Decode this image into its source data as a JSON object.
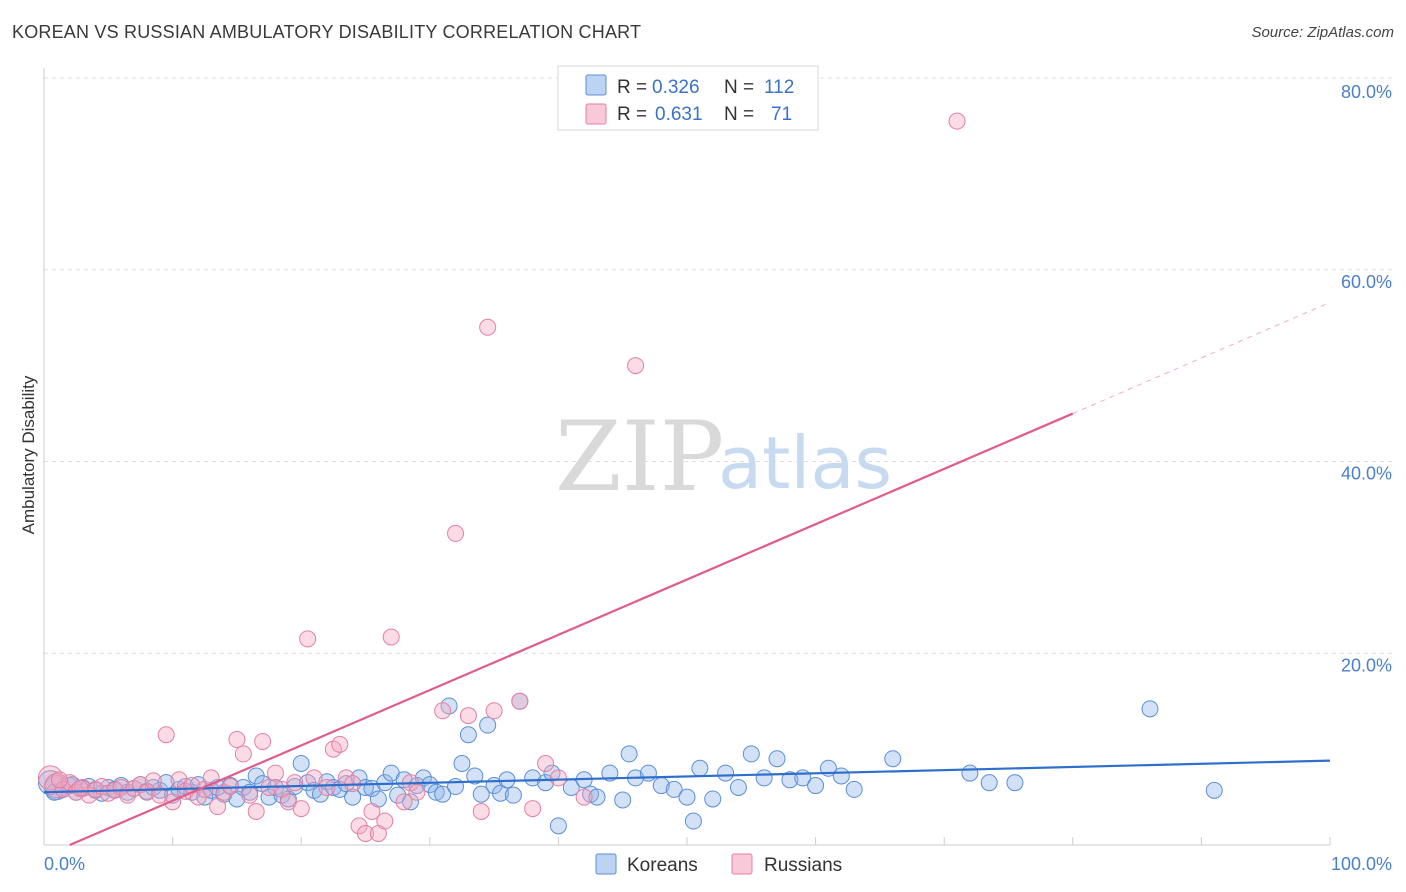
{
  "title": "KOREAN VS RUSSIAN AMBULATORY DISABILITY CORRELATION CHART",
  "source": "Source: ZipAtlas.com",
  "watermark": {
    "zip": "ZIP",
    "atlas": "atlas"
  },
  "chart_data": {
    "type": "scatter",
    "ylabel": "Ambulatory Disability",
    "xlim": [
      0,
      100
    ],
    "ylim": [
      0,
      80
    ],
    "y_ticks": [
      {
        "v": 20,
        "label": "20.0%"
      },
      {
        "v": 40,
        "label": "40.0%"
      },
      {
        "v": 60,
        "label": "60.0%"
      },
      {
        "v": 80,
        "label": "80.0%"
      }
    ],
    "x_ticks": [
      {
        "v": 0,
        "label": "0.0%"
      },
      {
        "v": 100,
        "label": "100.0%"
      }
    ],
    "legend_stats": [
      {
        "r_label": "R =",
        "r": "0.326",
        "n_label": "N =",
        "n": "112",
        "color": "#8fb5e8"
      },
      {
        "r_label": "R =",
        "r": "0.631",
        "n_label": "N =",
        "n": "71",
        "color": "#f4a7c0"
      }
    ],
    "series": [
      {
        "name": "Koreans",
        "color": "#8fb5e8",
        "stroke": "#5b8fd6",
        "trend": {
          "x0": 0,
          "y0": 5.5,
          "x1": 100,
          "y1": 8.8,
          "color": "#2f6fcc"
        },
        "points": [
          [
            0.5,
            6.5
          ],
          [
            1,
            6
          ],
          [
            1.5,
            5.8
          ],
          [
            2,
            6.2
          ],
          [
            2.5,
            5.5
          ],
          [
            3,
            5.9
          ],
          [
            3.5,
            6.1
          ],
          [
            4,
            5.7
          ],
          [
            4.5,
            5.4
          ],
          [
            5,
            6
          ],
          [
            5.5,
            5.8
          ],
          [
            6,
            6.2
          ],
          [
            6.5,
            5.5
          ],
          [
            7,
            5.9
          ],
          [
            7.5,
            6.3
          ],
          [
            8,
            5.6
          ],
          [
            8.5,
            6
          ],
          [
            9,
            5.7
          ],
          [
            9.5,
            6.5
          ],
          [
            10,
            5.2
          ],
          [
            10.5,
            5.8
          ],
          [
            11,
            6.1
          ],
          [
            11.5,
            5.5
          ],
          [
            12,
            6.3
          ],
          [
            12.5,
            5
          ],
          [
            13,
            5.7
          ],
          [
            13.5,
            6
          ],
          [
            14,
            5.3
          ],
          [
            14.5,
            6.2
          ],
          [
            15,
            4.8
          ],
          [
            15.5,
            6
          ],
          [
            16,
            5.5
          ],
          [
            16.5,
            7.2
          ],
          [
            17,
            6.4
          ],
          [
            17.5,
            5
          ],
          [
            18,
            6
          ],
          [
            18.5,
            5.2
          ],
          [
            19,
            4.8
          ],
          [
            19.5,
            6.1
          ],
          [
            20,
            8.5
          ],
          [
            20.5,
            6.5
          ],
          [
            21,
            5.7
          ],
          [
            21.5,
            5.3
          ],
          [
            22,
            6.6
          ],
          [
            22.5,
            6
          ],
          [
            23,
            5.8
          ],
          [
            23.5,
            6.4
          ],
          [
            24,
            5
          ],
          [
            24.5,
            7
          ],
          [
            25,
            6
          ],
          [
            25.5,
            5.9
          ],
          [
            26,
            4.8
          ],
          [
            26.5,
            6.5
          ],
          [
            27,
            7.5
          ],
          [
            27.5,
            5.2
          ],
          [
            28,
            6.8
          ],
          [
            28.5,
            4.5
          ],
          [
            29,
            6.2
          ],
          [
            29.5,
            7
          ],
          [
            30,
            6.3
          ],
          [
            30.5,
            5.5
          ],
          [
            31,
            5.3
          ],
          [
            31.5,
            14.5
          ],
          [
            32,
            6.1
          ],
          [
            32.5,
            8.5
          ],
          [
            33,
            11.5
          ],
          [
            33.5,
            7.2
          ],
          [
            34,
            5.3
          ],
          [
            34.5,
            12.5
          ],
          [
            35,
            6.2
          ],
          [
            35.5,
            5.4
          ],
          [
            36,
            6.8
          ],
          [
            36.5,
            5.2
          ],
          [
            37,
            15
          ],
          [
            38,
            7
          ],
          [
            39,
            6.5
          ],
          [
            39.5,
            7.5
          ],
          [
            40,
            2
          ],
          [
            41,
            6
          ],
          [
            42,
            6.8
          ],
          [
            42.5,
            5.3
          ],
          [
            43,
            5
          ],
          [
            44,
            7.5
          ],
          [
            45,
            4.7
          ],
          [
            45.5,
            9.5
          ],
          [
            46,
            7
          ],
          [
            47,
            7.5
          ],
          [
            48,
            6.2
          ],
          [
            49,
            5.8
          ],
          [
            50,
            5
          ],
          [
            50.5,
            2.5
          ],
          [
            51,
            8
          ],
          [
            52,
            4.8
          ],
          [
            53,
            7.5
          ],
          [
            54,
            6
          ],
          [
            55,
            9.5
          ],
          [
            56,
            7
          ],
          [
            57,
            9
          ],
          [
            58,
            6.8
          ],
          [
            59,
            7
          ],
          [
            60,
            6.2
          ],
          [
            61,
            8
          ],
          [
            62,
            7.2
          ],
          [
            63,
            5.8
          ],
          [
            66,
            9
          ],
          [
            72,
            7.5
          ],
          [
            73.5,
            6.5
          ],
          [
            75.5,
            6.5
          ],
          [
            86,
            14.2
          ],
          [
            91,
            5.7
          ],
          [
            0.8,
            5.5
          ],
          [
            2.2,
            6.3
          ]
        ]
      },
      {
        "name": "Russians",
        "color": "#f4a7c0",
        "stroke": "#e57fa3",
        "trend": {
          "x0": 2,
          "y0": 0,
          "x1": 80,
          "y1": 45,
          "color": "#e05c8c"
        },
        "trend_dash": {
          "x0": 80,
          "y0": 45,
          "x1": 100,
          "y1": 56.6
        },
        "points": [
          [
            0.5,
            7
          ],
          [
            1,
            6.2
          ],
          [
            1.5,
            5.8
          ],
          [
            2,
            6.5
          ],
          [
            2.5,
            5.5
          ],
          [
            3,
            6
          ],
          [
            3.5,
            5.2
          ],
          [
            4,
            5.8
          ],
          [
            4.5,
            6.1
          ],
          [
            5,
            5.4
          ],
          [
            5.5,
            5.7
          ],
          [
            6,
            6
          ],
          [
            6.5,
            5.2
          ],
          [
            7,
            5.9
          ],
          [
            7.5,
            6.3
          ],
          [
            8,
            5.5
          ],
          [
            8.5,
            6.7
          ],
          [
            9,
            5.2
          ],
          [
            9.5,
            11.5
          ],
          [
            10,
            4.5
          ],
          [
            10.5,
            6.8
          ],
          [
            11,
            5.6
          ],
          [
            11.5,
            6.2
          ],
          [
            12,
            5
          ],
          [
            12.5,
            5.8
          ],
          [
            13,
            7
          ],
          [
            13.5,
            4
          ],
          [
            14,
            5.5
          ],
          [
            14.5,
            6.1
          ],
          [
            15,
            11
          ],
          [
            15.5,
            9.5
          ],
          [
            16,
            5.2
          ],
          [
            16.5,
            3.5
          ],
          [
            17,
            10.8
          ],
          [
            17.5,
            6
          ],
          [
            18,
            7.5
          ],
          [
            18.5,
            5.8
          ],
          [
            19,
            4.5
          ],
          [
            19.5,
            6.5
          ],
          [
            20,
            3.8
          ],
          [
            20.5,
            21.5
          ],
          [
            21,
            7
          ],
          [
            22,
            6
          ],
          [
            22.5,
            10
          ],
          [
            23,
            10.5
          ],
          [
            23.5,
            7
          ],
          [
            24,
            6.4
          ],
          [
            24.5,
            2
          ],
          [
            25,
            1.2
          ],
          [
            25.5,
            3.5
          ],
          [
            26,
            1.2
          ],
          [
            26.5,
            2.5
          ],
          [
            27,
            21.7
          ],
          [
            28,
            4.5
          ],
          [
            28.5,
            6.5
          ],
          [
            29,
            5.5
          ],
          [
            31,
            14
          ],
          [
            32,
            32.5
          ],
          [
            33,
            13.5
          ],
          [
            34,
            3.5
          ],
          [
            34.5,
            54
          ],
          [
            35,
            14
          ],
          [
            37,
            15
          ],
          [
            38,
            3.8
          ],
          [
            39,
            8.5
          ],
          [
            40,
            7
          ],
          [
            42,
            5
          ],
          [
            46,
            50
          ],
          [
            71,
            75.5
          ],
          [
            1.2,
            6.8
          ],
          [
            2.8,
            5.9
          ]
        ]
      }
    ]
  }
}
